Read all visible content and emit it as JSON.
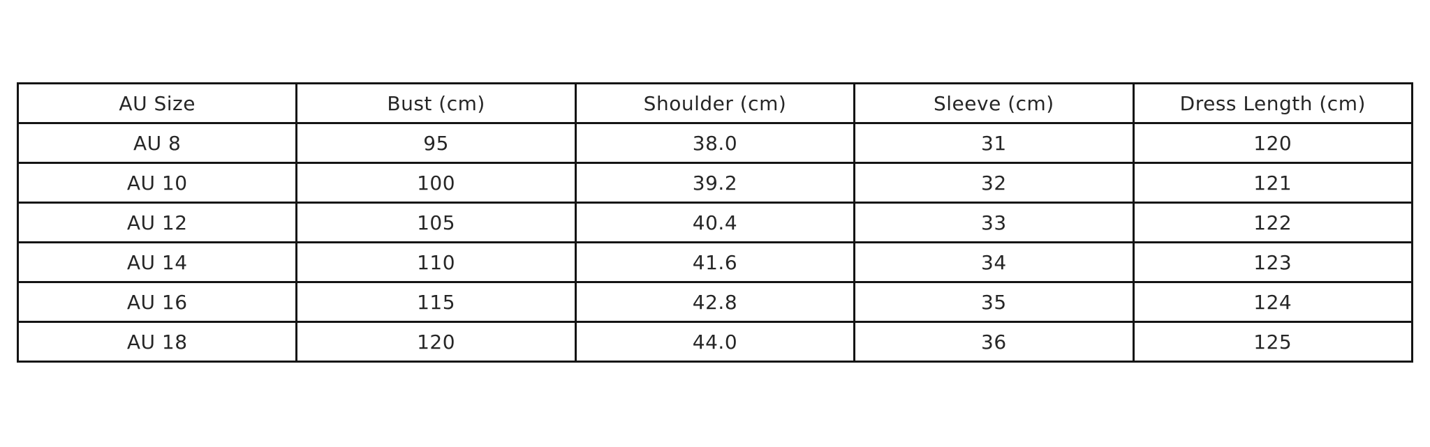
{
  "page": {
    "background_color": "#ffffff",
    "border_color": "#141414",
    "text_color": "#262626"
  },
  "chart_data": {
    "type": "table",
    "title": "",
    "columns": [
      "AU Size",
      "Bust (cm)",
      "Shoulder (cm)",
      "Sleeve (cm)",
      "Dress Length (cm)"
    ],
    "rows": [
      [
        "AU 8",
        "95",
        "38.0",
        "31",
        "120"
      ],
      [
        "AU 10",
        "100",
        "39.2",
        "32",
        "121"
      ],
      [
        "AU 12",
        "105",
        "40.4",
        "33",
        "122"
      ],
      [
        "AU 14",
        "110",
        "41.6",
        "34",
        "123"
      ],
      [
        "AU 16",
        "115",
        "42.8",
        "35",
        "124"
      ],
      [
        "AU 18",
        "120",
        "44.0",
        "36",
        "125"
      ]
    ]
  }
}
